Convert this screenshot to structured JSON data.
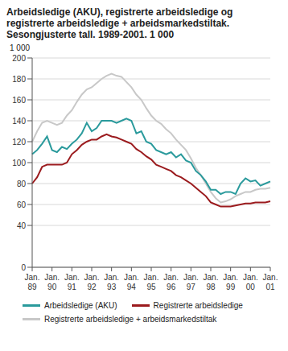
{
  "chart_data": {
    "type": "line",
    "title": "Arbeidsledige (AKU), registrerte arbeidsledige og registrerte arbeidsledige + arbeidsmarkedstiltak. Sesongjusterte tall. 1989-2001. 1 000",
    "ylabel": "1 000",
    "categories": [
      "Jan. 89",
      null,
      null,
      null,
      "Jan. 90",
      null,
      null,
      null,
      "Jan. 91",
      null,
      null,
      null,
      "Jan. 92",
      null,
      null,
      null,
      "Jan. 93",
      null,
      null,
      null,
      "Jan. 94",
      null,
      null,
      null,
      "Jan. 95",
      null,
      null,
      null,
      "Jan. 96",
      null,
      null,
      null,
      "Jan. 97",
      null,
      null,
      null,
      "Jan. 98",
      null,
      null,
      null,
      "Jan. 99",
      null,
      null,
      null,
      "Jan. 00",
      null,
      null,
      null,
      "Jan. 01"
    ],
    "series": [
      {
        "name": "Arbeidsledige (AKU)",
        "color": "#2a9a9c",
        "values": [
          108,
          112,
          118,
          125,
          112,
          110,
          115,
          113,
          118,
          122,
          128,
          138,
          130,
          133,
          140,
          140,
          140,
          138,
          140,
          142,
          140,
          128,
          130,
          120,
          118,
          112,
          110,
          108,
          110,
          105,
          108,
          102,
          100,
          92,
          88,
          82,
          74,
          74,
          70,
          72,
          72,
          70,
          80,
          85,
          82,
          83,
          78,
          80,
          82
        ]
      },
      {
        "name": "Registrerte arbeidsledige",
        "color": "#9b1b1e",
        "values": [
          80,
          86,
          96,
          98,
          98,
          98,
          98,
          100,
          108,
          112,
          117,
          120,
          122,
          122,
          125,
          127,
          125,
          124,
          122,
          120,
          118,
          113,
          110,
          106,
          103,
          98,
          96,
          94,
          92,
          88,
          86,
          83,
          80,
          76,
          72,
          68,
          62,
          60,
          58,
          58,
          58,
          59,
          60,
          61,
          61,
          62,
          62,
          62,
          63
        ]
      },
      {
        "name": "Registrerte arbeidsledige + arbeidsmarkedstiltak",
        "color": "#c8c8c8",
        "values": [
          120,
          130,
          138,
          140,
          138,
          136,
          138,
          145,
          150,
          158,
          165,
          170,
          172,
          176,
          180,
          183,
          185,
          183,
          182,
          177,
          172,
          165,
          160,
          152,
          145,
          140,
          137,
          132,
          128,
          122,
          117,
          112,
          104,
          95,
          88,
          80,
          72,
          66,
          62,
          63,
          65,
          68,
          70,
          72,
          72,
          74,
          75,
          75,
          76
        ]
      }
    ],
    "ylim": [
      0,
      200
    ],
    "yticks": [
      0,
      40,
      60,
      80,
      100,
      120,
      140,
      160,
      180,
      200
    ],
    "grid": true,
    "legend": "bottom"
  }
}
